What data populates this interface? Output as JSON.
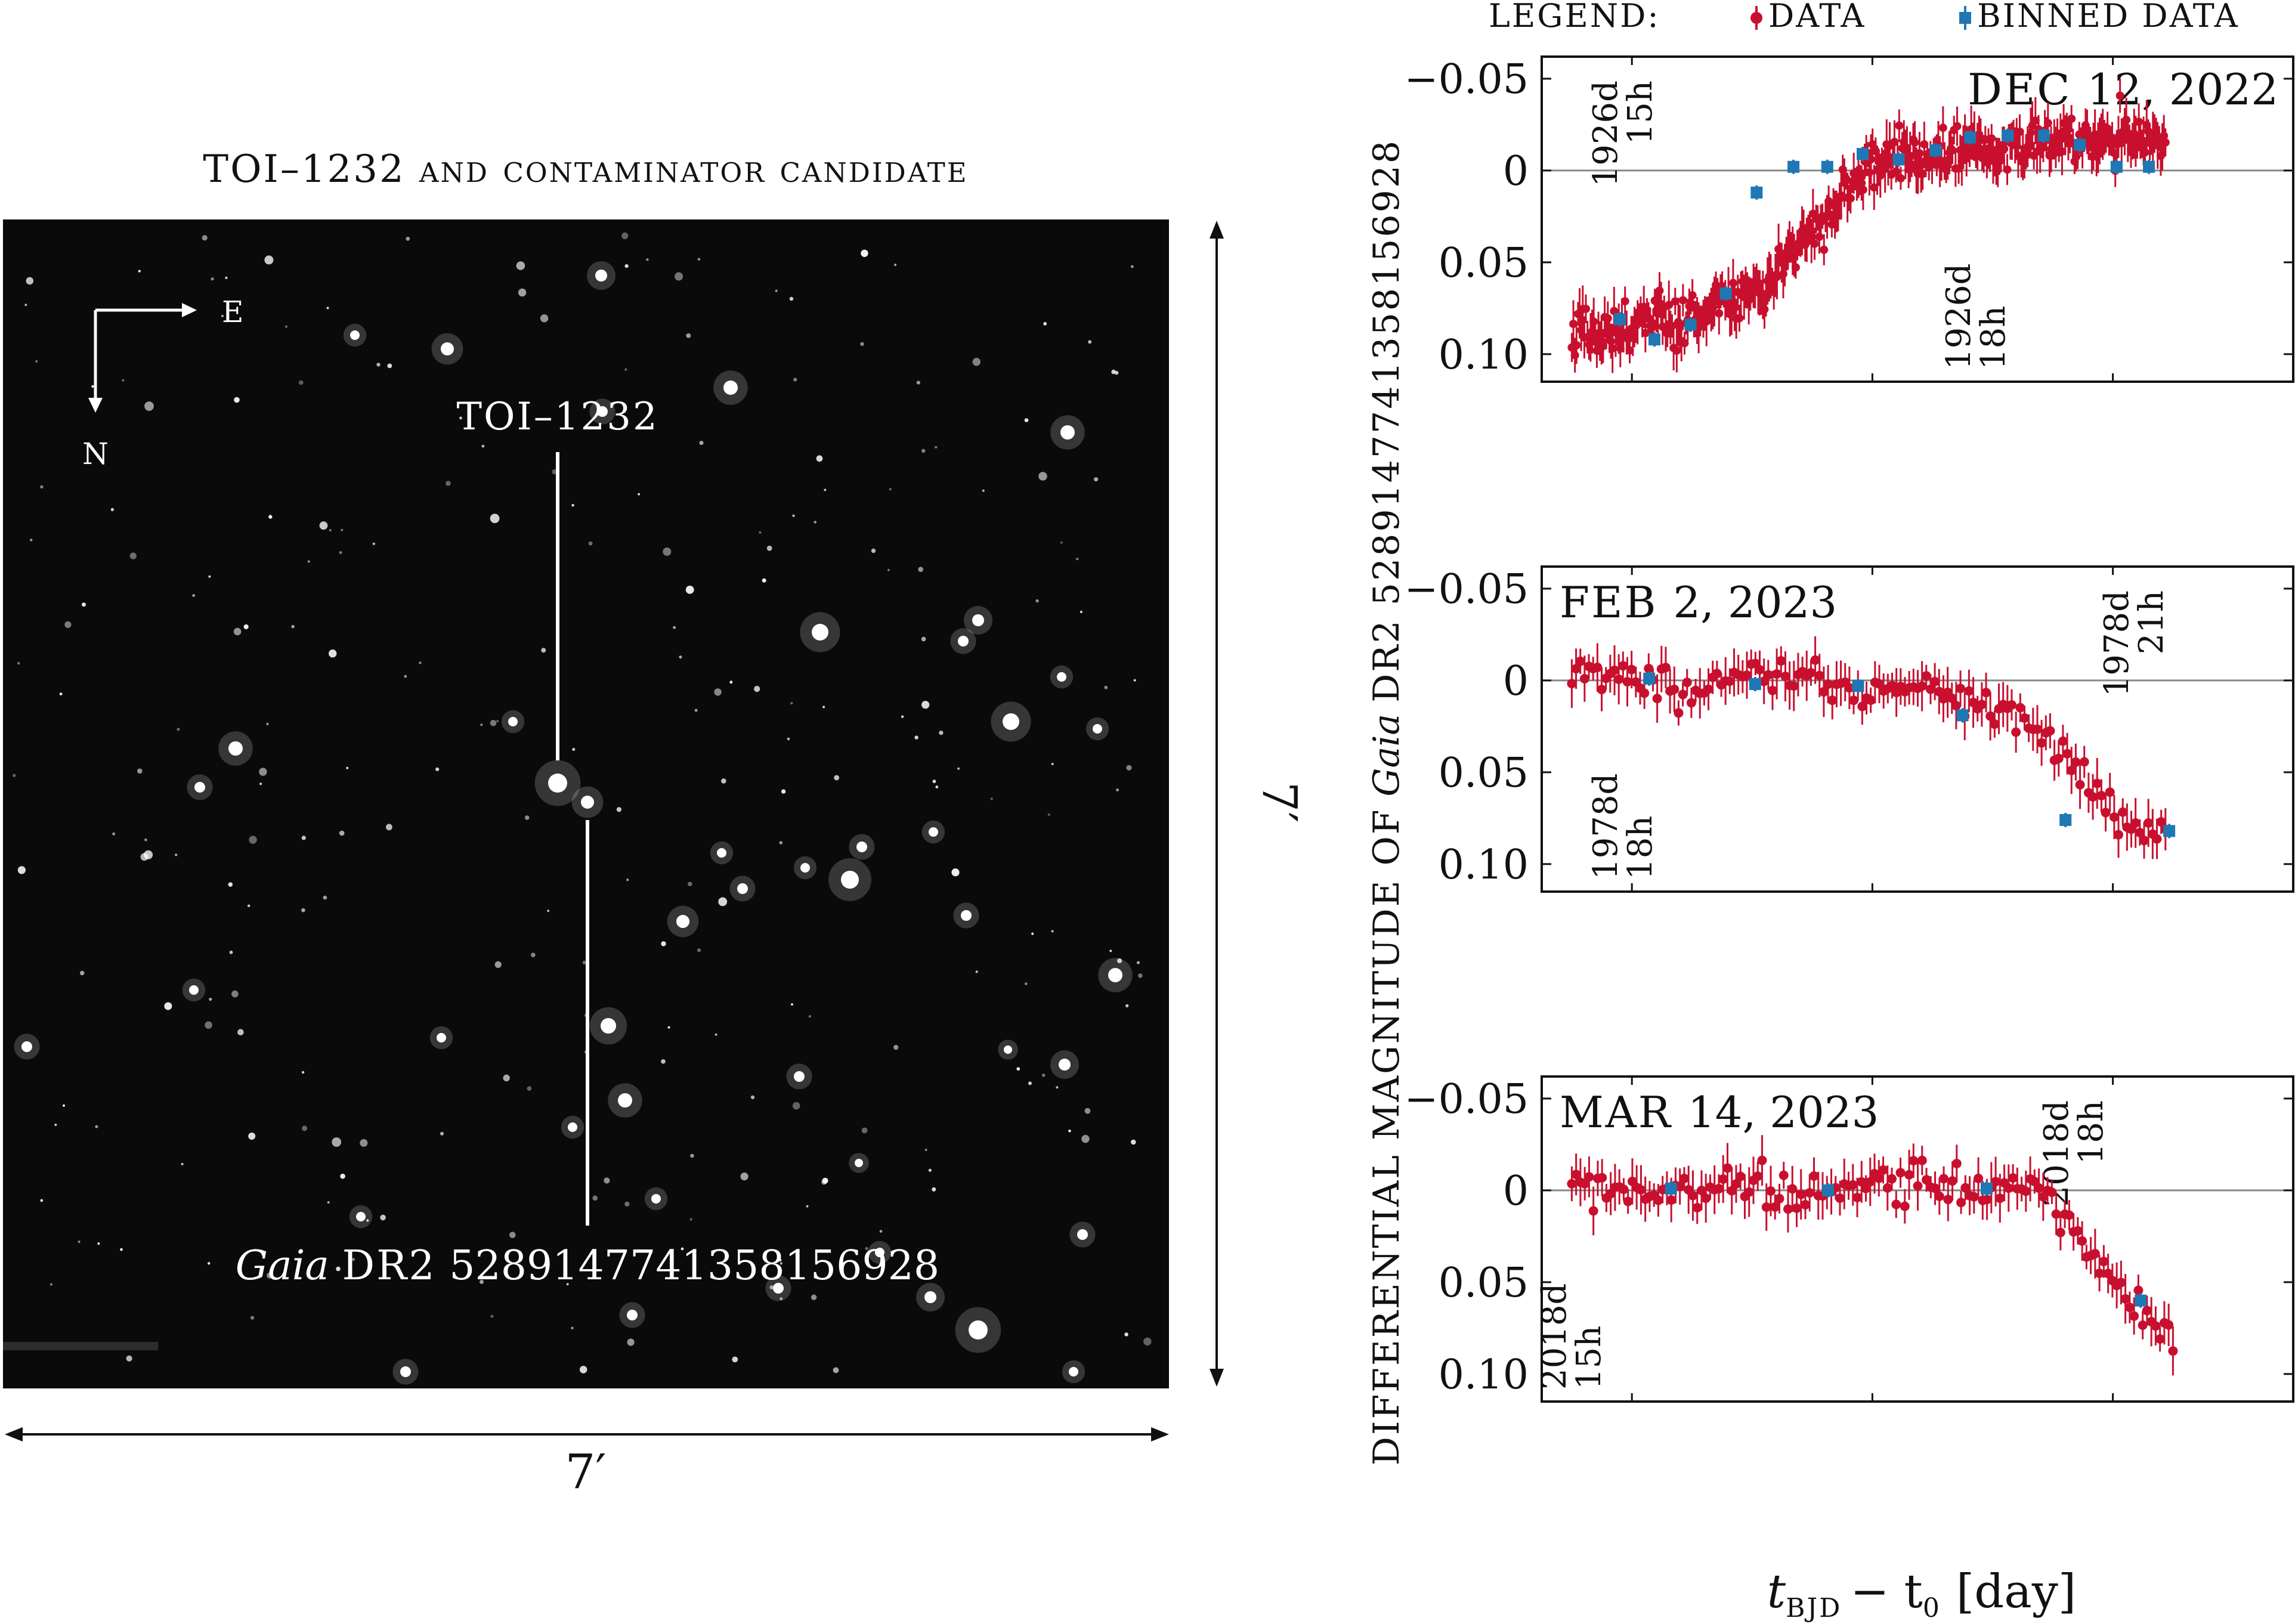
{
  "figure": {
    "image_panel": {
      "title": "TOI–1232 and contaminator candidate",
      "compass_east": "E",
      "compass_north": "N",
      "target_label": "TOI–1232",
      "contaminator_label_italic": "Gaia",
      "contaminator_label_sc": "DR2",
      "contaminator_label_num": "5289147741358156928",
      "width_label": "7′",
      "height_label": "7′"
    },
    "legend": {
      "title": "LEGEND:",
      "data_label": "DATA",
      "binned_label": "BINNED DATA",
      "data_color": "#c8102e",
      "binned_color": "#1f77b4"
    },
    "y_axis_label_prefix": "DIFFERENTIAL MAGNITUDE OF",
    "y_axis_label_italic": "Gaia",
    "y_axis_label_suffix": "DR2 5289147741358156928",
    "x_axis_label_t": "t",
    "x_axis_label_sub": "BJD",
    "x_axis_label_rest": "− t",
    "x_axis_label_sub0": "0",
    "x_axis_label_unit": "[day]"
  },
  "chart_data": [
    {
      "type": "scatter",
      "date_label_sc": "DEC",
      "date_label_rest": "12, 2022",
      "yticks": [
        "−0.05",
        "0",
        "0.05",
        "0.10"
      ],
      "ytick_values": [
        -0.05,
        0,
        0.05,
        0.1
      ],
      "ylim": [
        -0.062,
        0.115
      ],
      "xlim": [
        0,
        1
      ],
      "time_annotations": [
        {
          "line1": "1926d",
          "line2": "15h",
          "x": 0.1,
          "pos": "top"
        },
        {
          "line1": "1926d",
          "line2": "18h",
          "x": 0.57,
          "pos": "bottom"
        }
      ],
      "binned": {
        "x": [
          0.104,
          0.15,
          0.198,
          0.245,
          0.286,
          0.335,
          0.38,
          0.427,
          0.475,
          0.524,
          0.57,
          0.62,
          0.668,
          0.716,
          0.765,
          0.808
        ],
        "y": [
          0.081,
          0.092,
          0.084,
          0.067,
          0.012,
          -0.002,
          -0.002,
          -0.009,
          -0.006,
          -0.011,
          -0.018,
          -0.019,
          -0.019,
          -0.014,
          -0.002,
          -0.002
        ]
      }
    },
    {
      "type": "scatter",
      "date_label_sc": "FEB",
      "date_label_rest": "2, 2023",
      "yticks": [
        "−0.05",
        "0",
        "0.05",
        "0.10"
      ],
      "ytick_values": [
        -0.05,
        0,
        0.05,
        0.1
      ],
      "ylim": [
        -0.062,
        0.115
      ],
      "xlim": [
        0,
        1
      ],
      "time_annotations": [
        {
          "line1": "1978d",
          "line2": "21h",
          "x": 0.78,
          "pos": "top"
        },
        {
          "line1": "1978d",
          "line2": "18h",
          "x": 0.1,
          "pos": "bottom"
        }
      ],
      "binned": {
        "x": [
          0.143,
          0.284,
          0.421,
          0.56,
          0.697,
          0.835
        ],
        "y": [
          -0.001,
          0.002,
          0.003,
          0.019,
          0.076,
          0.082
        ]
      }
    },
    {
      "type": "scatter",
      "date_label_sc": "MAR",
      "date_label_rest": "14, 2023",
      "yticks": [
        "−0.05",
        "0",
        "0.05",
        "0.10"
      ],
      "ytick_values": [
        -0.05,
        0,
        0.05,
        0.1
      ],
      "ylim": [
        -0.062,
        0.115
      ],
      "xlim": [
        0,
        1
      ],
      "time_annotations": [
        {
          "line1": "2018d",
          "line2": "18h",
          "x": 0.7,
          "pos": "top"
        },
        {
          "line1": "2018d",
          "line2": "15h",
          "x": 0.0,
          "pos": "bottom"
        }
      ],
      "binned": {
        "x": [
          0.172,
          0.381,
          0.592,
          0.797
        ],
        "y": [
          -0.001,
          0.0,
          -0.001,
          0.06
        ]
      }
    }
  ]
}
